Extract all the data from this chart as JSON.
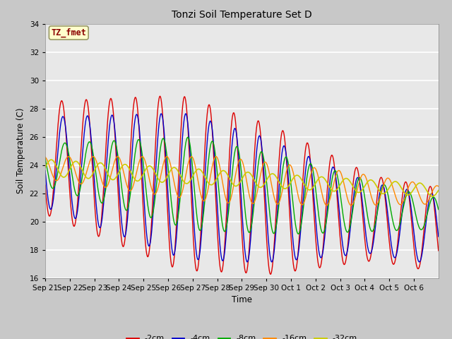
{
  "title": "Tonzi Soil Temperature Set D",
  "xlabel": "Time",
  "ylabel": "Soil Temperature (C)",
  "ylim": [
    16,
    34
  ],
  "yticks": [
    16,
    18,
    20,
    22,
    24,
    26,
    28,
    30,
    32,
    34
  ],
  "annotation_text": "TZ_fmet",
  "annotation_color": "#8B0000",
  "annotation_bg": "#FFFFCC",
  "fig_bg": "#C8C8C8",
  "plot_bg": "#E8E8E8",
  "grid_color": "#FFFFFF",
  "series_colors": {
    "-2cm": "#DD0000",
    "-4cm": "#0000CC",
    "-8cm": "#00AA00",
    "-16cm": "#FF8800",
    "-32cm": "#CCCC00"
  },
  "x_tick_labels": [
    "Sep 21",
    "Sep 22",
    "Sep 23",
    "Sep 24",
    "Sep 25",
    "Sep 26",
    "Sep 27",
    "Sep 28",
    "Sep 29",
    "Sep 30",
    "Oct 1",
    "Oct 2",
    "Oct 3",
    "Oct 4",
    "Oct 5",
    "Oct 6"
  ],
  "n_days": 16,
  "pts_per_day": 48
}
